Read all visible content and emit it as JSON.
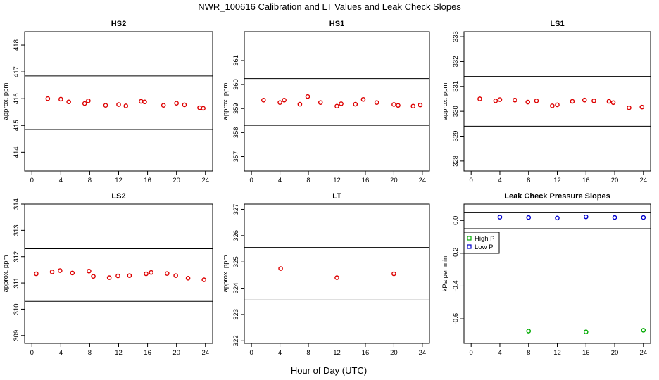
{
  "figure": {
    "title": "NWR_100616  Calibration and LT Values and Leak Check Slopes",
    "xlabel": "Hour of Day (UTC)"
  },
  "colors": {
    "red": "#dd0000",
    "green": "#00aa00",
    "blue": "#0000cc"
  },
  "chart_data": [
    {
      "type": "scatter",
      "title": "HS2",
      "ylabel": "approx. ppm",
      "xlim": [
        -1,
        25
      ],
      "ylim": [
        413.3,
        418.5
      ],
      "xticks": [
        0,
        4,
        8,
        12,
        16,
        20,
        24
      ],
      "yticks": [
        414,
        415,
        416,
        417,
        418
      ],
      "hlines": [
        416.85,
        414.85
      ],
      "series": [
        {
          "color": "red",
          "marker": "circle",
          "x": [
            2.2,
            4.0,
            5.1,
            7.3,
            7.8,
            10.2,
            12.0,
            13.0,
            15.1,
            15.6,
            18.2,
            20.0,
            21.1,
            23.2,
            23.7
          ],
          "y": [
            416.0,
            415.98,
            415.88,
            415.82,
            415.92,
            415.75,
            415.78,
            415.73,
            415.9,
            415.88,
            415.75,
            415.83,
            415.77,
            415.66,
            415.64
          ]
        }
      ]
    },
    {
      "type": "scatter",
      "title": "HS1",
      "ylabel": "approx. ppm",
      "xlim": [
        -1,
        25
      ],
      "ylim": [
        356.4,
        362.2
      ],
      "xticks": [
        0,
        4,
        8,
        12,
        16,
        20,
        24
      ],
      "yticks": [
        357,
        358,
        359,
        360,
        361
      ],
      "hlines": [
        360.25,
        358.3
      ],
      "series": [
        {
          "color": "red",
          "marker": "circle",
          "x": [
            1.7,
            4.0,
            4.6,
            6.8,
            7.9,
            9.7,
            12.0,
            12.6,
            14.6,
            15.7,
            17.6,
            20.0,
            20.6,
            22.7,
            23.7
          ],
          "y": [
            359.35,
            359.25,
            359.35,
            359.18,
            359.5,
            359.25,
            359.1,
            359.2,
            359.18,
            359.38,
            359.25,
            359.17,
            359.13,
            359.1,
            359.15
          ]
        }
      ]
    },
    {
      "type": "scatter",
      "title": "LS1",
      "ylabel": "approx. ppm",
      "xlim": [
        -1,
        25
      ],
      "ylim": [
        327.6,
        333.2
      ],
      "xticks": [
        0,
        4,
        8,
        12,
        16,
        20,
        24
      ],
      "yticks": [
        328,
        329,
        330,
        331,
        332,
        333
      ],
      "hlines": [
        331.4,
        329.4
      ],
      "series": [
        {
          "color": "red",
          "marker": "circle",
          "x": [
            1.2,
            3.4,
            4.0,
            6.1,
            7.9,
            9.1,
            11.3,
            12.0,
            14.1,
            15.8,
            17.1,
            19.2,
            19.8,
            22.0,
            23.8
          ],
          "y": [
            330.5,
            330.42,
            330.47,
            330.45,
            330.37,
            330.42,
            330.22,
            330.26,
            330.4,
            330.45,
            330.42,
            330.4,
            330.35,
            330.14,
            330.17
          ]
        }
      ]
    },
    {
      "type": "scatter",
      "title": "LS2",
      "ylabel": "approx. ppm",
      "xlim": [
        -1,
        25
      ],
      "ylim": [
        308.7,
        314.0
      ],
      "xticks": [
        0,
        4,
        8,
        12,
        16,
        20,
        24
      ],
      "yticks": [
        309,
        310,
        311,
        312,
        313,
        314
      ],
      "hlines": [
        312.3,
        310.3
      ],
      "series": [
        {
          "color": "red",
          "marker": "circle",
          "x": [
            0.6,
            2.8,
            3.9,
            5.6,
            7.9,
            8.5,
            10.7,
            11.9,
            13.5,
            15.8,
            16.5,
            18.7,
            19.9,
            21.6,
            23.8
          ],
          "y": [
            311.35,
            311.42,
            311.47,
            311.38,
            311.45,
            311.25,
            311.2,
            311.27,
            311.28,
            311.35,
            311.4,
            311.36,
            311.28,
            311.18,
            311.12
          ]
        }
      ]
    },
    {
      "type": "scatter",
      "title": "LT",
      "ylabel": "approx. ppm",
      "xlim": [
        -1,
        25
      ],
      "ylim": [
        321.9,
        327.2
      ],
      "xticks": [
        0,
        4,
        8,
        12,
        16,
        20,
        24
      ],
      "yticks": [
        322,
        323,
        324,
        325,
        326,
        327
      ],
      "hlines": [
        325.55,
        323.55
      ],
      "series": [
        {
          "color": "red",
          "marker": "circle",
          "x": [
            4.1,
            12.0,
            20.0
          ],
          "y": [
            324.75,
            324.4,
            324.55
          ]
        }
      ]
    },
    {
      "type": "scatter",
      "title": "Leak Check Pressure Slopes",
      "ylabel": "kPa per min",
      "xlim": [
        -1,
        25
      ],
      "ylim": [
        -0.75,
        0.1
      ],
      "xticks": [
        0,
        4,
        8,
        12,
        16,
        20,
        24
      ],
      "yticks": [
        0.0,
        -0.2,
        -0.4,
        -0.6
      ],
      "hlines": [
        0.05,
        -0.05
      ],
      "legend": {
        "position": "top-left",
        "entries": [
          {
            "label": "High P",
            "color": "green"
          },
          {
            "label": "Low P",
            "color": "blue"
          }
        ]
      },
      "series": [
        {
          "name": "High P",
          "color": "green",
          "marker": "circle",
          "x": [
            8.0,
            16.0,
            24.0
          ],
          "y": [
            -0.675,
            -0.68,
            -0.67
          ]
        },
        {
          "name": "Low P",
          "color": "blue",
          "marker": "circle",
          "x": [
            4.0,
            8.0,
            12.0,
            16.0,
            20.0,
            24.0
          ],
          "y": [
            0.02,
            0.018,
            0.015,
            0.022,
            0.018,
            0.018
          ]
        }
      ]
    }
  ]
}
